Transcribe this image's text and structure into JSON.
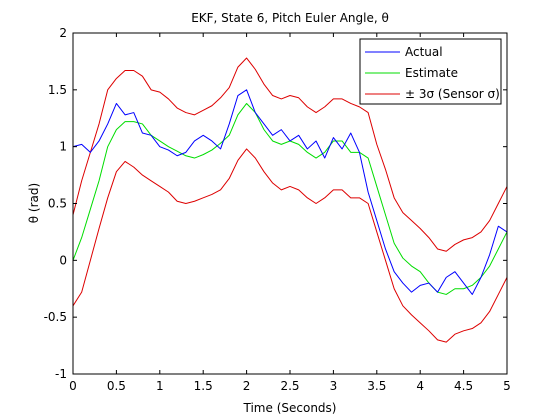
{
  "chart_data": {
    "type": "line",
    "title": "EKF, State 6, Pitch Euler Angle, θ",
    "xlabel": "Time (Seconds)",
    "ylabel": "θ (rad)",
    "xlim": [
      0,
      5
    ],
    "ylim": [
      -1,
      2
    ],
    "xticks": [
      "0",
      "0.5",
      "1",
      "1.5",
      "2",
      "2.5",
      "3",
      "3.5",
      "4",
      "4.5",
      "5"
    ],
    "yticks": [
      "-1",
      "-0.5",
      "0",
      "0.5",
      "1",
      "1.5",
      "2"
    ],
    "grid": false,
    "legend_position": "top-right",
    "x": [
      0,
      0.1,
      0.2,
      0.3,
      0.4,
      0.5,
      0.6,
      0.7,
      0.8,
      0.9,
      1.0,
      1.1,
      1.2,
      1.3,
      1.4,
      1.5,
      1.6,
      1.7,
      1.8,
      1.9,
      2.0,
      2.1,
      2.2,
      2.3,
      2.4,
      2.5,
      2.6,
      2.7,
      2.8,
      2.9,
      3.0,
      3.1,
      3.2,
      3.3,
      3.4,
      3.5,
      3.6,
      3.7,
      3.8,
      3.9,
      4.0,
      4.1,
      4.2,
      4.3,
      4.4,
      4.5,
      4.6,
      4.7,
      4.8,
      4.9,
      5.0
    ],
    "series": [
      {
        "name": "Actual",
        "color": "#0000ff",
        "values": [
          1.0,
          1.02,
          0.95,
          1.05,
          1.2,
          1.38,
          1.28,
          1.3,
          1.12,
          1.1,
          1.0,
          0.97,
          0.92,
          0.95,
          1.05,
          1.1,
          1.05,
          0.98,
          1.2,
          1.45,
          1.5,
          1.3,
          1.2,
          1.1,
          1.15,
          1.05,
          1.1,
          0.98,
          1.05,
          0.9,
          1.08,
          0.98,
          1.12,
          0.95,
          0.6,
          0.35,
          0.1,
          -0.1,
          -0.2,
          -0.28,
          -0.22,
          -0.2,
          -0.28,
          -0.15,
          -0.1,
          -0.2,
          -0.3,
          -0.15,
          0.05,
          0.3,
          0.25
        ]
      },
      {
        "name": "Estimate",
        "color": "#00dd00",
        "values": [
          0.0,
          0.2,
          0.45,
          0.7,
          1.0,
          1.15,
          1.22,
          1.22,
          1.2,
          1.1,
          1.05,
          1.0,
          0.96,
          0.92,
          0.9,
          0.93,
          0.97,
          1.03,
          1.1,
          1.28,
          1.38,
          1.3,
          1.15,
          1.05,
          1.02,
          1.05,
          1.02,
          0.95,
          0.9,
          0.95,
          1.05,
          1.05,
          0.95,
          0.95,
          0.9,
          0.65,
          0.4,
          0.15,
          0.02,
          -0.05,
          -0.1,
          -0.2,
          -0.28,
          -0.3,
          -0.25,
          -0.25,
          -0.22,
          -0.15,
          -0.05,
          0.1,
          0.25
        ]
      },
      {
        "name": "± 3σ (Sensor σ)",
        "color": "#dd0000",
        "values": [
          0.4,
          0.7,
          0.95,
          1.2,
          1.5,
          1.6,
          1.67,
          1.67,
          1.62,
          1.5,
          1.48,
          1.42,
          1.34,
          1.3,
          1.28,
          1.32,
          1.36,
          1.43,
          1.52,
          1.7,
          1.78,
          1.68,
          1.55,
          1.45,
          1.42,
          1.45,
          1.43,
          1.35,
          1.3,
          1.35,
          1.42,
          1.42,
          1.38,
          1.35,
          1.3,
          1.02,
          0.8,
          0.55,
          0.42,
          0.35,
          0.28,
          0.2,
          0.1,
          0.08,
          0.14,
          0.18,
          0.2,
          0.25,
          0.35,
          0.5,
          0.65
        ]
      },
      {
        "name": "",
        "color": "#dd0000",
        "values": [
          -0.4,
          -0.28,
          0.0,
          0.28,
          0.55,
          0.78,
          0.87,
          0.82,
          0.75,
          0.7,
          0.65,
          0.6,
          0.52,
          0.5,
          0.52,
          0.55,
          0.58,
          0.62,
          0.72,
          0.88,
          0.98,
          0.9,
          0.78,
          0.68,
          0.62,
          0.65,
          0.62,
          0.55,
          0.5,
          0.55,
          0.62,
          0.62,
          0.55,
          0.55,
          0.5,
          0.25,
          0.0,
          -0.25,
          -0.4,
          -0.48,
          -0.55,
          -0.62,
          -0.7,
          -0.72,
          -0.65,
          -0.62,
          -0.6,
          -0.55,
          -0.45,
          -0.3,
          -0.15
        ]
      }
    ]
  }
}
